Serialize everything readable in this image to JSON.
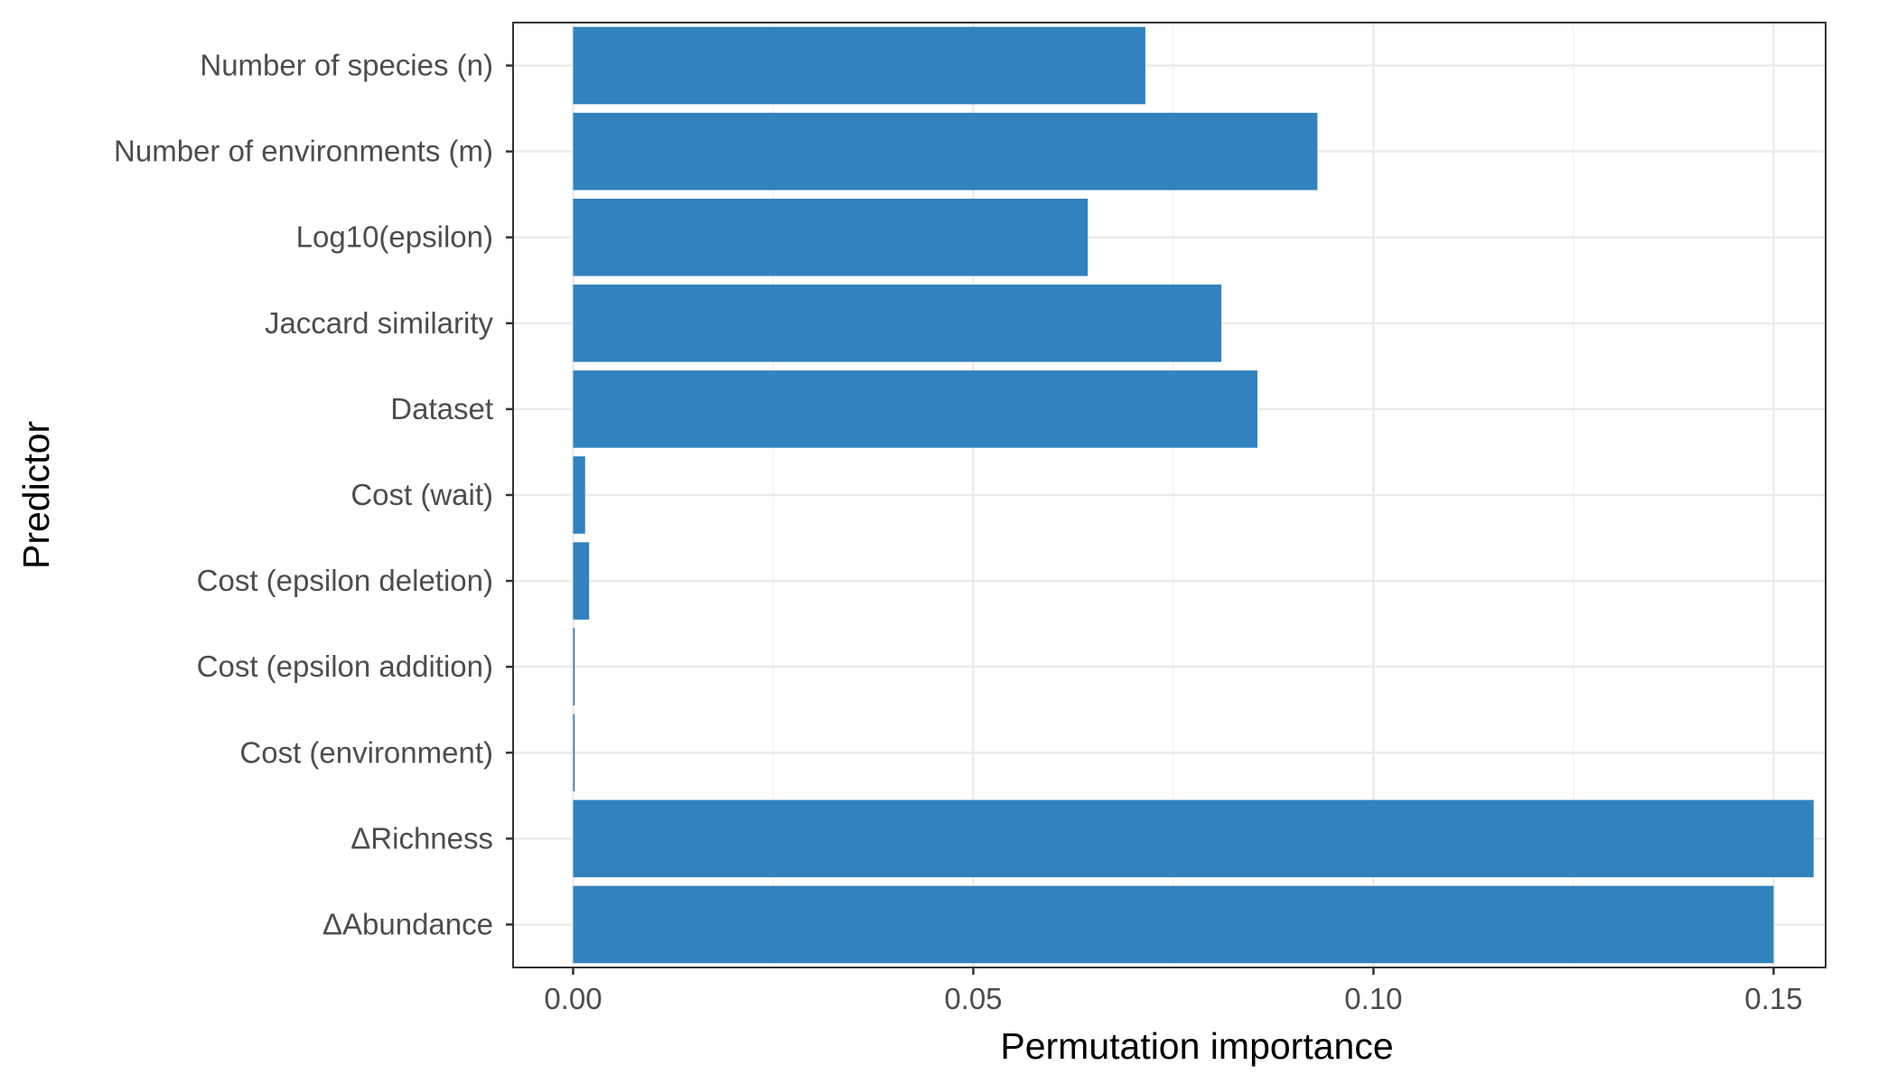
{
  "chart_data": {
    "type": "bar",
    "orientation": "horizontal",
    "title": "",
    "xlabel": "Permutation importance",
    "ylabel": "Predictor",
    "categories": [
      "Number of species (n)",
      "Number of environments (m)",
      "Log10(epsilon)",
      "Jaccard similarity",
      "Dataset",
      "Cost (wait)",
      "Cost (epsilon deletion)",
      "Cost (epsilon addition)",
      "Cost (environment)",
      "ΔRichness",
      "ΔAbundance"
    ],
    "values": [
      0.0715,
      0.093,
      0.0643,
      0.081,
      0.0855,
      0.0015,
      0.002,
      0.0002,
      0.0002,
      0.155,
      0.15
    ],
    "xlim": [
      -0.0075,
      0.1565
    ],
    "xticks": [
      0.0,
      0.05,
      0.1,
      0.15
    ],
    "xtick_labels": [
      "0.00",
      "0.05",
      "0.10",
      "0.15"
    ],
    "grid": true,
    "legend": "none",
    "bar_color": "#3182bd"
  }
}
